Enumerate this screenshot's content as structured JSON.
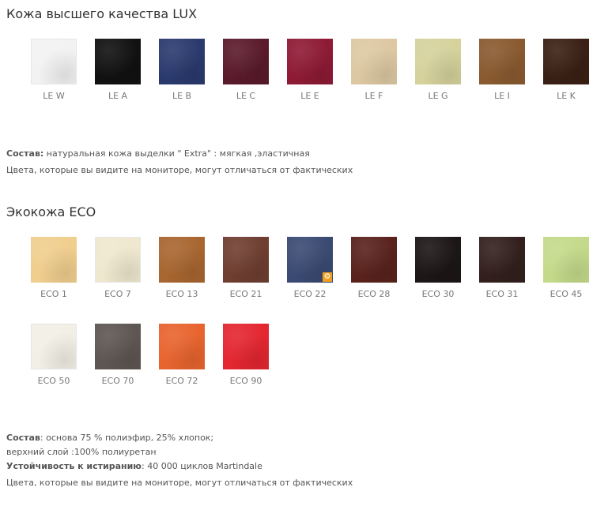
{
  "lux": {
    "title": "Кожа высшего качества LUX",
    "swatches": [
      {
        "code": "LE W",
        "color": "#f2f2f2"
      },
      {
        "code": "LE A",
        "color": "#111111"
      },
      {
        "code": "LE B",
        "color": "#2a3a6e"
      },
      {
        "code": "LE C",
        "color": "#5a1a2c"
      },
      {
        "code": "LE E",
        "color": "#8e1a35"
      },
      {
        "code": "LE F",
        "color": "#ddc8a2"
      },
      {
        "code": "LE G",
        "color": "#d5d29c"
      },
      {
        "code": "LE I",
        "color": "#8a5a30"
      },
      {
        "code": "LE K",
        "color": "#3a2014"
      }
    ],
    "composition_label": "Состав:",
    "composition_text": " натуральная кожа  выделки \" Extra\" : мягкая ,эластичная",
    "disclaimer": "Цвета, которые вы видите на мониторе, могут отличаться от фактических"
  },
  "eco": {
    "title": "Экокожа ECO",
    "swatches": [
      {
        "code": "ECO 1",
        "color": "#f0ce8e"
      },
      {
        "code": "ECO 7",
        "color": "#efe8cf"
      },
      {
        "code": "ECO 13",
        "color": "#a86630"
      },
      {
        "code": "ECO 21",
        "color": "#6e3e30"
      },
      {
        "code": "ECO 22",
        "color": "#3a4a72",
        "badge": "gear-icon"
      },
      {
        "code": "ECO 28",
        "color": "#5a221c"
      },
      {
        "code": "ECO 30",
        "color": "#1c1616"
      },
      {
        "code": "ECO 31",
        "color": "#33201e"
      },
      {
        "code": "ECO 45",
        "color": "#c4da8a"
      },
      {
        "code": "ECO 50",
        "color": "#f2efe6"
      },
      {
        "code": "ECO 70",
        "color": "#5e5652"
      },
      {
        "code": "ECO 72",
        "color": "#e8642e"
      },
      {
        "code": "ECO 90",
        "color": "#e42630"
      }
    ],
    "composition_label": "Состав",
    "composition_text": ": основа 75 % полиэфир, 25% хлопок;",
    "composition_line2": "верхний слой :100% полиуретан",
    "abrasion_label": "Устойчивость к истиранию",
    "abrasion_text": ": 40 000 циклов Martindale",
    "disclaimer": "Цвета, которые вы видите на мониторе, могут отличаться от фактических"
  }
}
